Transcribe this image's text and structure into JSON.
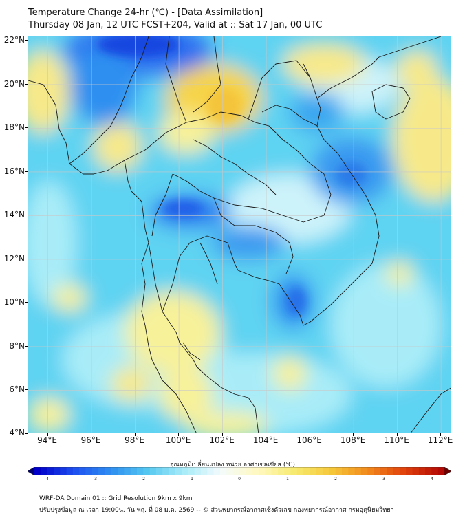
{
  "header": {
    "title": "Temperature Change 24-hr (℃) - [Data Assimilation]",
    "subtitle": "Thursday 08 Jan, 12 UTC FCST+204, Valid at :: Sat 17 Jan, 00 UTC"
  },
  "map": {
    "lat_labels": [
      "22°N",
      "20°N",
      "18°N",
      "16°N",
      "14°N",
      "12°N",
      "10°N",
      "8°N",
      "6°N",
      "4°N"
    ],
    "lon_labels": [
      "94°E",
      "96°E",
      "98°E",
      "100°E",
      "102°E",
      "104°E",
      "106°E",
      "108°E",
      "110°E",
      "112°E"
    ],
    "lat_range": [
      4,
      22.2
    ],
    "lon_range": [
      93.1,
      112.5
    ],
    "field_colors": {
      "strong_cold": "#1446e0",
      "cold": "#2f8ff0",
      "cool": "#5fd3f2",
      "slight_cool": "#a9ecf8",
      "neutral": "#f2fbfd",
      "warm": "#f7f19a",
      "hot": "#f6d44a"
    }
  },
  "colorbar": {
    "label": "อุณหภูมิเปลี่ยนแปลง หน่วย องศาเซลเซียส (℃)",
    "ticks": [
      "-4",
      "-3",
      "-2",
      "-1",
      "0",
      "1",
      "2",
      "3",
      "4"
    ],
    "colors": [
      "#000070",
      "#0000c8",
      "#1e50f0",
      "#2f8ff0",
      "#55c8f0",
      "#a9ecf8",
      "#f4fbfd",
      "#fff9c0",
      "#f7ea70",
      "#f6c83a",
      "#f28a1c",
      "#e0400c",
      "#b40a06",
      "#6e0000"
    ]
  },
  "footer": {
    "line1": "WRF-DA Domain 01 :: Grid Resolution 9km x 9km",
    "line2": "ปรับปรุงข้อมูล ณ เวลา 19:00น. วัน พฤ. ที่ 08 ม.ค. 2569 -- © ส่วนพยากรณ์อากาศเชิงตัวเลข กองพยากรณ์อากาศ กรมอุตุนิยมวิทยา"
  }
}
